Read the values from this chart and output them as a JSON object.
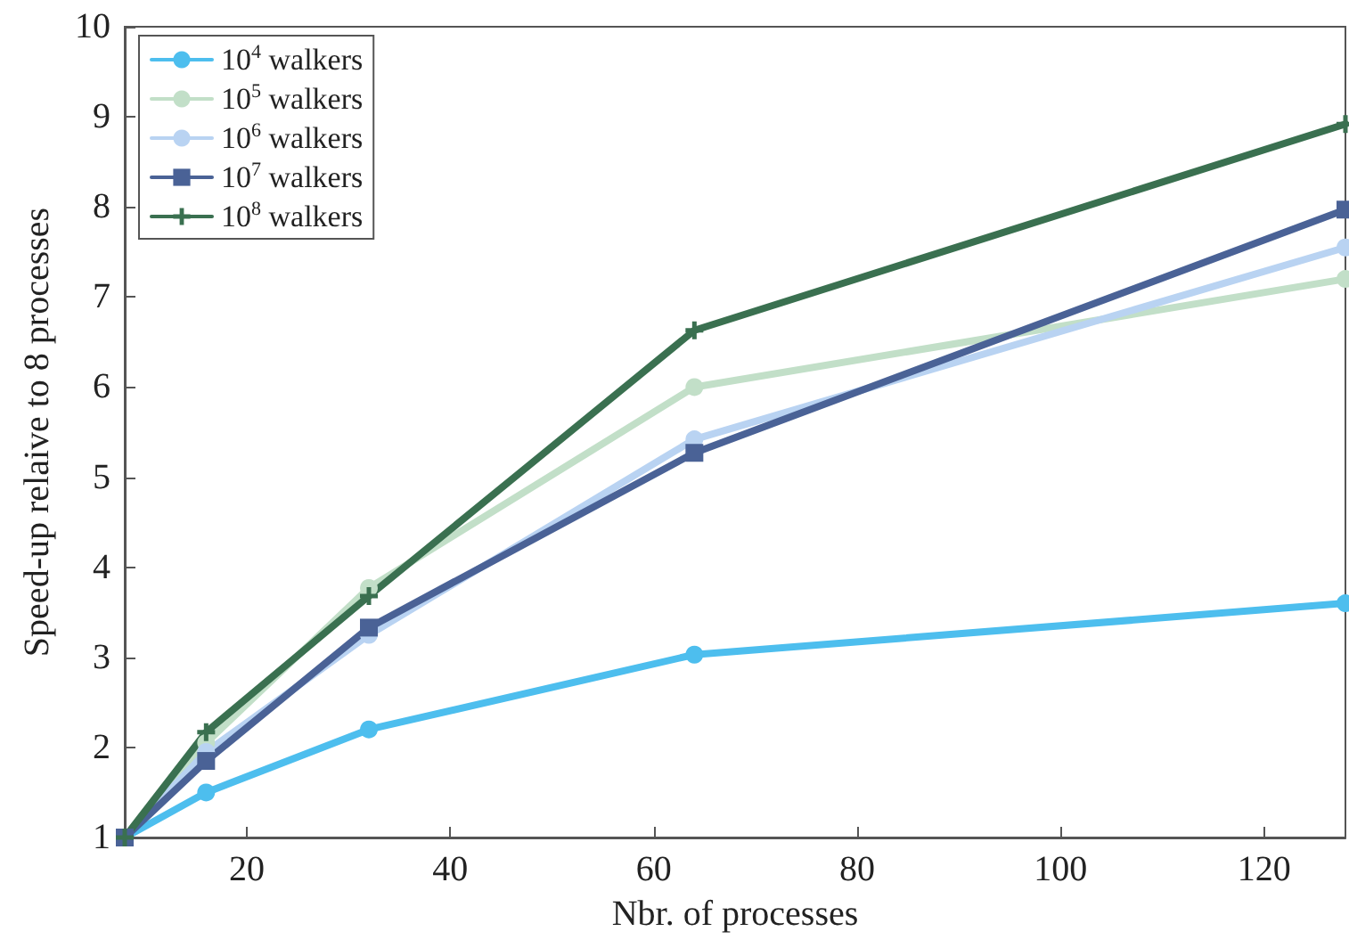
{
  "chart_data": {
    "type": "line",
    "xlabel": "Nbr. of processes",
    "ylabel": "Speed-up relaive to 8 processes",
    "x": [
      8,
      16,
      32,
      64,
      128
    ],
    "series": [
      {
        "name": "10$^{4}$ walkers",
        "color": "#4dbeee",
        "marker": "circle",
        "values": [
          1,
          1.5,
          2.2,
          3.03,
          3.6
        ]
      },
      {
        "name": "10$^{5}$ walkers",
        "color": "#c2dfc8",
        "marker": "circle",
        "values": [
          1,
          2.05,
          3.77,
          6.0,
          7.2
        ]
      },
      {
        "name": "10$^{6}$ walkers",
        "color": "#b9d3f2",
        "marker": "circle",
        "values": [
          1,
          1.95,
          3.25,
          5.42,
          7.55
        ]
      },
      {
        "name": "10$^{7}$ walkers",
        "color": "#4a6296",
        "marker": "square",
        "values": [
          1,
          1.85,
          3.33,
          5.27,
          7.97
        ]
      },
      {
        "name": "10$^{8}$ walkers",
        "color": "#3a7050",
        "marker": "cross",
        "values": [
          1,
          2.17,
          3.68,
          6.63,
          8.92
        ]
      }
    ],
    "xlim": [
      8,
      128
    ],
    "xticks": [
      20,
      40,
      60,
      80,
      100,
      120
    ],
    "ylim": [
      1,
      10
    ],
    "yticks": [
      1,
      2,
      3,
      4,
      5,
      6,
      7,
      8,
      9,
      10
    ],
    "grid": false,
    "legend": "top left",
    "line_style": "solid"
  }
}
